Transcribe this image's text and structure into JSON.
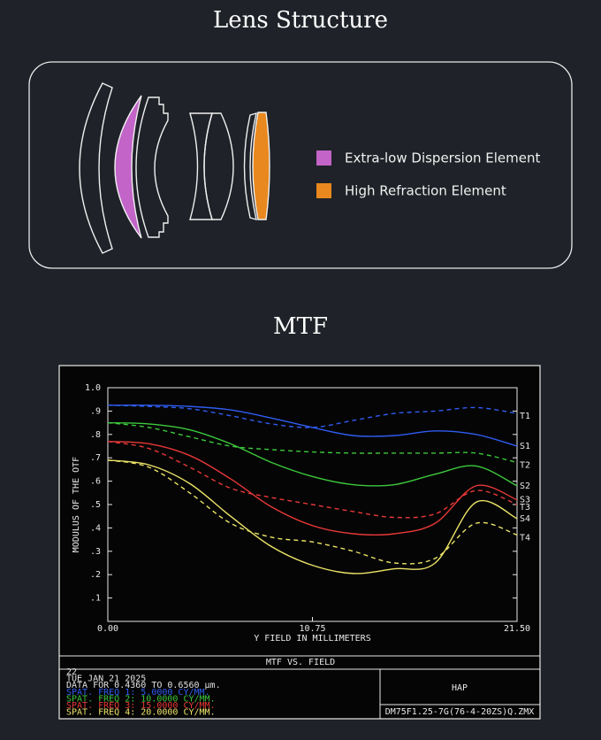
{
  "lens_structure": {
    "title": "Lens Structure",
    "legend": [
      {
        "label": "Extra-low Dispersion Element",
        "color": "#c264c8"
      },
      {
        "label": "High Refraction Element",
        "color": "#e8881e"
      }
    ]
  },
  "mtf_title": "MTF",
  "chart_data": {
    "type": "line",
    "xlabel": "Y FIELD IN MILLIMETERS",
    "ylabel": "MODULUS OF THE OTF",
    "title": "MTF VS. FIELD",
    "x": [
      0,
      2.15,
      4.3,
      6.45,
      8.6,
      10.75,
      12.9,
      15.05,
      17.2,
      19.35,
      21.5
    ],
    "xlim": [
      0,
      21.5
    ],
    "xticks": [
      {
        "value": 0,
        "label": "0.00"
      },
      10.75,
      {
        "value": 21.5,
        "label": "21.50"
      }
    ],
    "ylim": [
      0,
      1
    ],
    "yticks": [
      {
        "value": 0.1,
        "label": ".1"
      },
      {
        "value": 0.2,
        "label": ".2"
      },
      {
        "value": 0.3,
        "label": ".3"
      },
      {
        "value": 0.4,
        "label": ".4"
      },
      {
        "value": 0.5,
        "label": ".5"
      },
      {
        "value": 0.6,
        "label": ".6"
      },
      {
        "value": 0.7,
        "label": ".7"
      },
      {
        "value": 0.8,
        "label": ".8"
      },
      {
        "value": 0.9,
        "label": ".9"
      },
      {
        "value": 1,
        "label": "1.0"
      }
    ],
    "series": [
      {
        "name": "T1",
        "color": "#2f5cf0",
        "dashed": true,
        "values": [
          0.925,
          0.92,
          0.91,
          0.88,
          0.845,
          0.83,
          0.86,
          0.89,
          0.9,
          0.915,
          0.89
        ]
      },
      {
        "name": "S1",
        "color": "#2f5cf0",
        "dashed": false,
        "values": [
          0.925,
          0.925,
          0.92,
          0.905,
          0.87,
          0.83,
          0.795,
          0.795,
          0.815,
          0.8,
          0.75
        ]
      },
      {
        "name": "T2",
        "color": "#3cc83c",
        "dashed": true,
        "values": [
          0.85,
          0.83,
          0.79,
          0.75,
          0.735,
          0.725,
          0.72,
          0.72,
          0.72,
          0.72,
          0.68
        ]
      },
      {
        "name": "S2",
        "color": "#3cc83c",
        "dashed": false,
        "values": [
          0.85,
          0.845,
          0.82,
          0.76,
          0.68,
          0.62,
          0.585,
          0.585,
          0.63,
          0.665,
          0.58
        ]
      },
      {
        "name": "S3",
        "color": "#e83838",
        "dashed": false,
        "values": [
          0.77,
          0.76,
          0.71,
          0.61,
          0.49,
          0.41,
          0.375,
          0.375,
          0.42,
          0.58,
          0.52
        ]
      },
      {
        "name": "T3",
        "color": "#e83838",
        "dashed": true,
        "values": [
          0.77,
          0.74,
          0.66,
          0.57,
          0.53,
          0.5,
          0.47,
          0.445,
          0.46,
          0.56,
          0.5
        ]
      },
      {
        "name": "S4",
        "color": "#ece468",
        "dashed": false,
        "values": [
          0.69,
          0.67,
          0.59,
          0.45,
          0.32,
          0.24,
          0.205,
          0.225,
          0.25,
          0.51,
          0.44
        ]
      },
      {
        "name": "T4",
        "color": "#ece468",
        "dashed": true,
        "values": [
          0.69,
          0.66,
          0.55,
          0.42,
          0.36,
          0.34,
          0.3,
          0.25,
          0.27,
          0.42,
          0.37
        ]
      }
    ],
    "footer": [
      {
        "text": "22",
        "color": "#e0e0e0"
      },
      {
        "text": "TUE JAN 21 2025",
        "color": "#e0e0e0"
      },
      {
        "text": "DATA FOR 0.4360 TO 0.6560 µm.",
        "color": "#e0e0e0"
      },
      {
        "text": "SPAT. FREQ 1:  5.0000 CY/MM.",
        "color": "#2f5cf0"
      },
      {
        "text": "SPAT. FREQ 2:  10.0000 CY/MM.",
        "color": "#3cc83c"
      },
      {
        "text": "SPAT. FREQ 3:  15.0000 CY/MM.",
        "color": "#e83838"
      },
      {
        "text": "SPAT. FREQ 4:  20.0000 CY/MM.",
        "color": "#ece468"
      }
    ],
    "company": "HAP",
    "file": "DM75F1.25-7G(76-4-20ZS)Q.ZMX"
  }
}
